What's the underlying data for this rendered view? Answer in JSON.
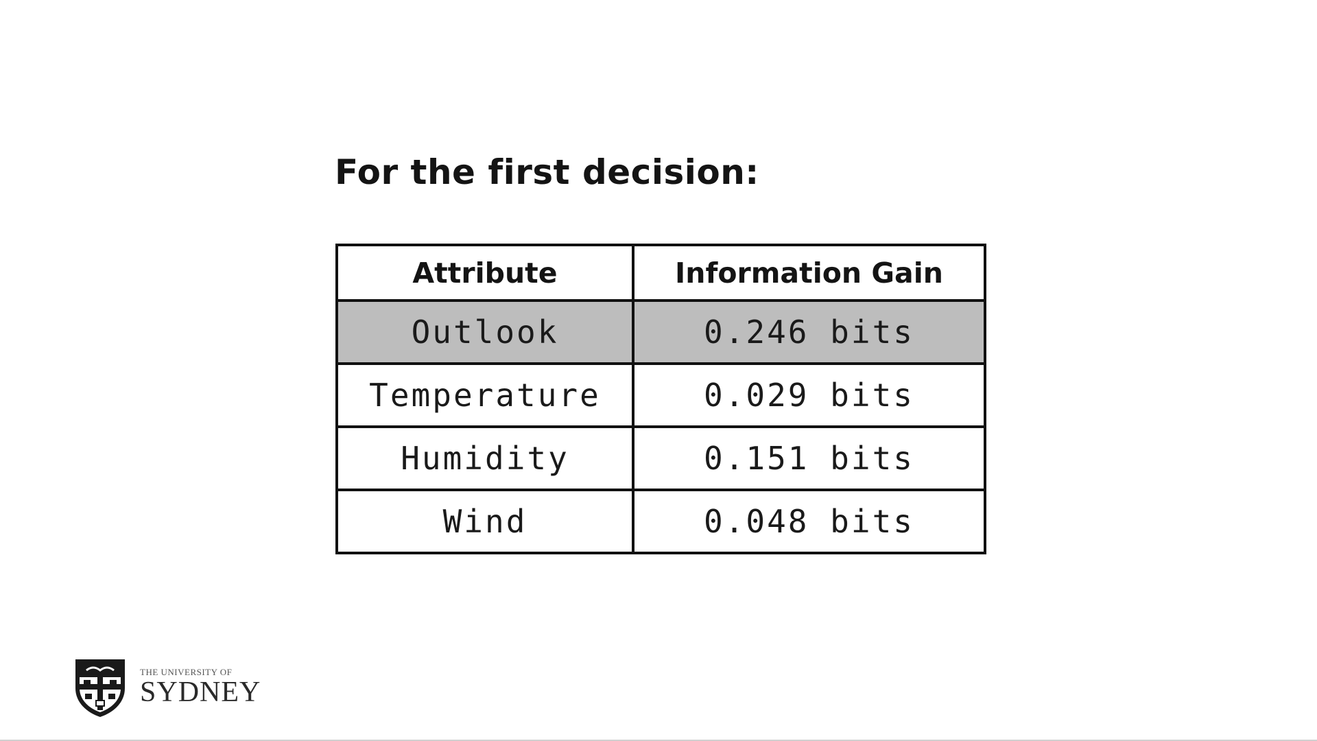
{
  "slide": {
    "heading": "For the first decision:"
  },
  "table": {
    "headers": [
      "Attribute",
      "Information Gain"
    ],
    "rows": [
      {
        "attribute": "Outlook",
        "gain": "0.246 bits",
        "highlighted": true
      },
      {
        "attribute": "Temperature",
        "gain": "0.029 bits",
        "highlighted": false
      },
      {
        "attribute": "Humidity",
        "gain": "0.151 bits",
        "highlighted": false
      },
      {
        "attribute": "Wind",
        "gain": "0.048 bits",
        "highlighted": false
      }
    ],
    "highlight_color": "#bdbdbd"
  },
  "logo": {
    "icon": "university-crest-icon",
    "line1": "THE UNIVERSITY OF",
    "line2": "SYDNEY"
  }
}
